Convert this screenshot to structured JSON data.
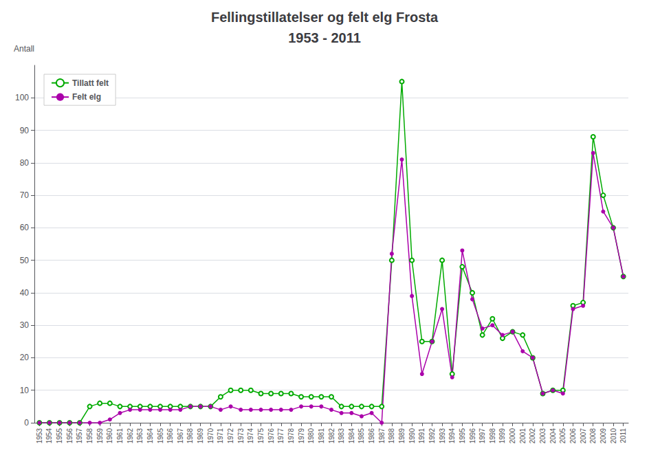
{
  "chart_data": {
    "type": "line",
    "title": "Fellingstillatelser og felt elg Frosta",
    "subtitle": "1953 - 2011",
    "ylabel": "Antall",
    "x": [
      1953,
      1954,
      1955,
      1956,
      1957,
      1958,
      1959,
      1960,
      1961,
      1962,
      1963,
      1964,
      1965,
      1966,
      1967,
      1968,
      1969,
      1970,
      1971,
      1972,
      1973,
      1974,
      1975,
      1976,
      1977,
      1978,
      1979,
      1980,
      1981,
      1982,
      1983,
      1984,
      1985,
      1986,
      1987,
      1988,
      1989,
      1990,
      1991,
      1992,
      1993,
      1994,
      1995,
      1996,
      1997,
      1998,
      1999,
      2000,
      2001,
      2002,
      2003,
      2004,
      2005,
      2006,
      2007,
      2008,
      2009,
      2010,
      2011
    ],
    "series": [
      {
        "name": "Tillatt felt",
        "color": "#00aa00",
        "marker": "open_circle",
        "values": [
          0,
          0,
          0,
          0,
          0,
          5,
          6,
          6,
          5,
          5,
          5,
          5,
          5,
          5,
          5,
          5,
          5,
          5,
          8,
          10,
          10,
          10,
          9,
          9,
          9,
          9,
          8,
          8,
          8,
          8,
          5,
          5,
          5,
          5,
          5,
          50,
          105,
          50,
          25,
          25,
          50,
          15,
          48,
          40,
          27,
          32,
          26,
          28,
          27,
          20,
          9,
          10,
          10,
          36,
          37,
          88,
          70,
          60,
          45
        ]
      },
      {
        "name": "Felt elg",
        "color": "#aa00aa",
        "marker": "circle",
        "values": [
          0,
          0,
          0,
          0,
          0,
          0,
          0,
          1,
          3,
          4,
          4,
          4,
          4,
          4,
          4,
          5,
          5,
          5,
          4,
          5,
          4,
          4,
          4,
          4,
          4,
          4,
          5,
          5,
          5,
          4,
          3,
          3,
          2,
          3,
          0,
          52,
          81,
          39,
          15,
          25,
          35,
          14,
          53,
          38,
          29,
          30,
          27,
          28,
          22,
          20,
          9,
          10,
          9,
          35,
          36,
          83,
          65,
          60,
          45
        ]
      }
    ],
    "xlim": [
      1952.5,
      2011.5
    ],
    "xticks": [
      1953,
      1954,
      1955,
      1956,
      1957,
      1958,
      1959,
      1960,
      1961,
      1962,
      1963,
      1964,
      1965,
      1966,
      1967,
      1968,
      1969,
      1970,
      1971,
      1972,
      1973,
      1974,
      1975,
      1976,
      1977,
      1978,
      1979,
      1980,
      1981,
      1982,
      1983,
      1984,
      1985,
      1986,
      1987,
      1988,
      1989,
      1990,
      1991,
      1992,
      1993,
      1994,
      1995,
      1996,
      1997,
      1998,
      1999,
      2000,
      2001,
      2002,
      2003,
      2004,
      2005,
      2006,
      2007,
      2008,
      2009,
      2010,
      2011
    ],
    "ylim": [
      0,
      110
    ],
    "yticks": [
      0,
      10,
      20,
      30,
      40,
      50,
      60,
      70,
      80,
      90,
      100
    ],
    "grid": true,
    "legend": "upper left"
  }
}
